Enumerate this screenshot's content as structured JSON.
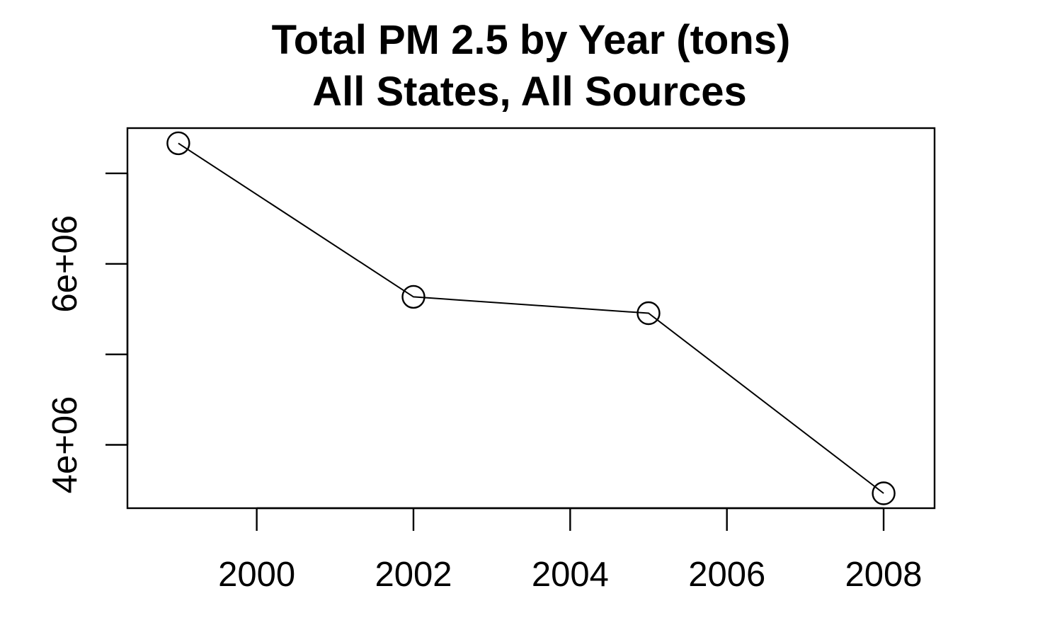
{
  "chart_data": {
    "type": "line",
    "title": "Total PM 2.5 by Year (tons)",
    "subtitle": "All States, All Sources",
    "x": [
      1999,
      2002,
      2005,
      2008
    ],
    "series": [
      {
        "values": [
          7332967,
          5635780,
          5454703,
          3464206
        ]
      }
    ],
    "xlim": [
      1998.35,
      2008.65
    ],
    "ylim": [
      3300000,
      7500000
    ],
    "x_ticks": [
      2000,
      2002,
      2004,
      2006,
      2008
    ],
    "x_tick_labels": [
      "2000",
      "2002",
      "2004",
      "2006",
      "2008"
    ],
    "y_ticks": [
      4000000,
      5000000,
      6000000,
      7000000
    ],
    "y_tick_labels": [
      "4e+06",
      "",
      "6e+06",
      ""
    ],
    "marker": "open-circle",
    "grid": false,
    "legend": "none",
    "colors": {
      "line": "#000000",
      "marker": "#000000",
      "axis": "#000000",
      "background": "#ffffff"
    }
  }
}
